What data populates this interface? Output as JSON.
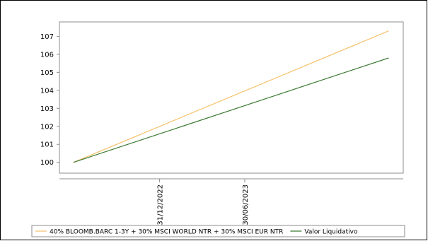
{
  "chart_data": {
    "type": "line",
    "x_ticks": [
      "31/12/2022",
      "30/06/2023"
    ],
    "y_ticks": [
      100,
      101,
      102,
      103,
      104,
      105,
      106,
      107
    ],
    "ylim": [
      99.4,
      107.8
    ],
    "grid": false,
    "legend_placement": "bottom",
    "series": [
      {
        "name": "40% BLOOMB.BARC 1-3Y + 30% MSCI WORLD NTR + 30% MSCI EUR NTR",
        "color": "#f5c06a",
        "x": [
          "01/07/2022",
          "01/05/2024"
        ],
        "values": [
          100.0,
          107.3
        ]
      },
      {
        "name": "Valor Liquidativo",
        "color": "#3d7a34",
        "x": [
          "01/07/2022",
          "01/05/2024"
        ],
        "values": [
          100.0,
          105.8
        ]
      }
    ]
  }
}
